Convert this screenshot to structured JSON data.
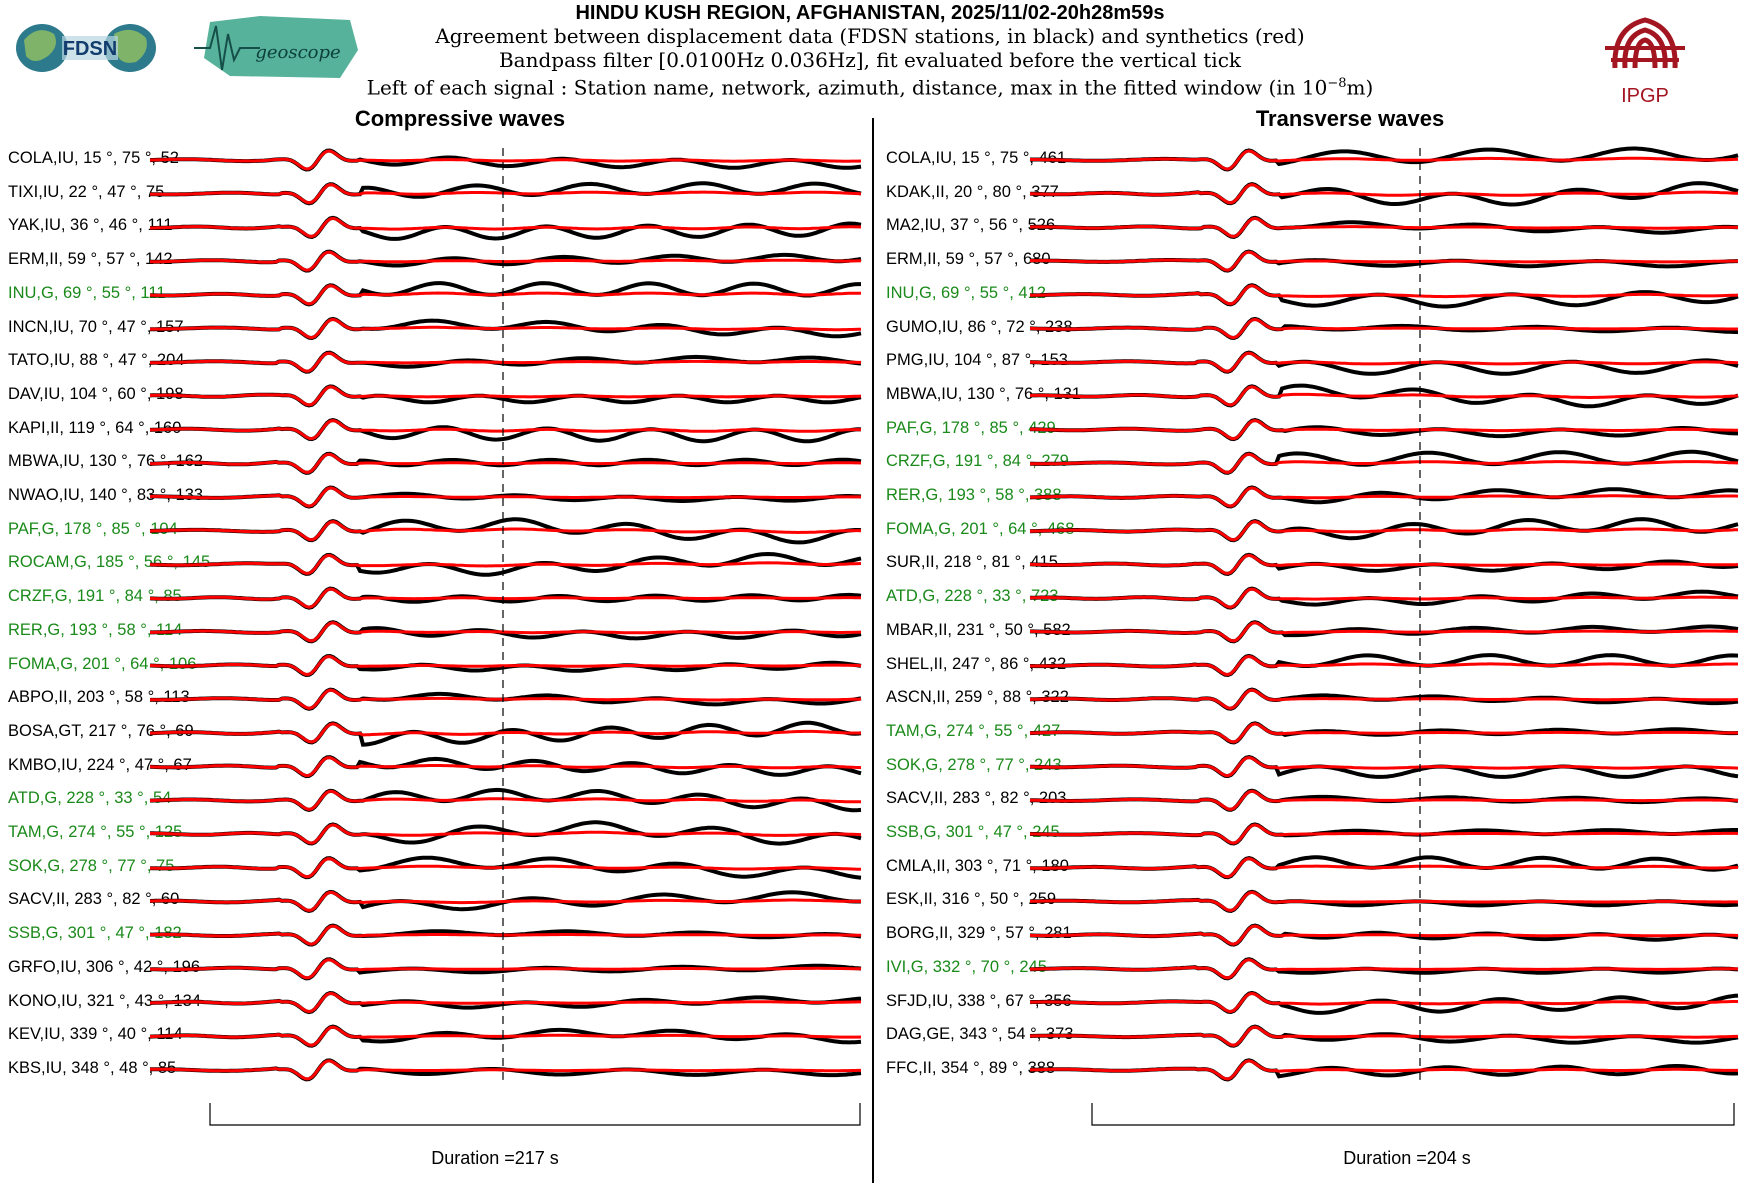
{
  "header": {
    "title": "HINDU KUSH REGION, AFGHANISTAN, 2025/11/02-20h28m59s",
    "line1": "Agreement between displacement data (FDSN stations, in black) and synthetics (red)",
    "line2": "Bandpass filter [0.0100Hz 0.036Hz], fit evaluated before the vertical tick",
    "line3_prefix": "Left of each signal : Station name, network, azimuth, distance, max in the fitted window (in 10",
    "line3_exp": "−8",
    "line3_suffix": "m)"
  },
  "logos": {
    "fdsn": "FDSN",
    "geoscope": "geoscope",
    "ipgp": "IPGP"
  },
  "colors": {
    "data": "#000000",
    "synthetic": "#ff0000",
    "geoscope_station": "#1a8a1a",
    "other_station": "#000000",
    "ipgp_red": "#a31621"
  },
  "chart_data": [
    {
      "type": "line",
      "title": "Compressive waves",
      "duration_label": "Duration =217 s",
      "duration_s": 217,
      "series_legend": [
        "data (black)",
        "synthetics (red)"
      ],
      "stations": [
        {
          "label": "COLA,IU, 15 °, 75 °, 52",
          "network": "IU",
          "azimuth": 15,
          "distance": 75,
          "max": 52,
          "geoscope": false
        },
        {
          "label": "TIXI,IU, 22 °, 47 °, 75",
          "network": "IU",
          "azimuth": 22,
          "distance": 47,
          "max": 75,
          "geoscope": false
        },
        {
          "label": "YAK,IU, 36 °, 46 °, 111",
          "network": "IU",
          "azimuth": 36,
          "distance": 46,
          "max": 111,
          "geoscope": false
        },
        {
          "label": "ERM,II, 59 °, 57 °, 142",
          "network": "II",
          "azimuth": 59,
          "distance": 57,
          "max": 142,
          "geoscope": false
        },
        {
          "label": "INU,G, 69 °, 55 °, 111",
          "network": "G",
          "azimuth": 69,
          "distance": 55,
          "max": 111,
          "geoscope": true
        },
        {
          "label": "INCN,IU, 70 °, 47 °, 157",
          "network": "IU",
          "azimuth": 70,
          "distance": 47,
          "max": 157,
          "geoscope": false
        },
        {
          "label": "TATO,IU, 88 °, 47 °, 204",
          "network": "IU",
          "azimuth": 88,
          "distance": 47,
          "max": 204,
          "geoscope": false
        },
        {
          "label": "DAV,IU, 104 °, 60 °, 198",
          "network": "IU",
          "azimuth": 104,
          "distance": 60,
          "max": 198,
          "geoscope": false
        },
        {
          "label": "KAPI,II, 119 °, 64 °, 160",
          "network": "II",
          "azimuth": 119,
          "distance": 64,
          "max": 160,
          "geoscope": false
        },
        {
          "label": "MBWA,IU, 130 °, 76 °, 162",
          "network": "IU",
          "azimuth": 130,
          "distance": 76,
          "max": 162,
          "geoscope": false
        },
        {
          "label": "NWAO,IU, 140 °, 83 °, 133",
          "network": "IU",
          "azimuth": 140,
          "distance": 83,
          "max": 133,
          "geoscope": false
        },
        {
          "label": "PAF,G, 178 °, 85 °, 104",
          "network": "G",
          "azimuth": 178,
          "distance": 85,
          "max": 104,
          "geoscope": true
        },
        {
          "label": "ROCAM,G, 185 °, 56 °, 145",
          "network": "G",
          "azimuth": 185,
          "distance": 56,
          "max": 145,
          "geoscope": true
        },
        {
          "label": "CRZF,G, 191 °, 84 °, 85",
          "network": "G",
          "azimuth": 191,
          "distance": 84,
          "max": 85,
          "geoscope": true
        },
        {
          "label": "RER,G, 193 °, 58 °, 114",
          "network": "G",
          "azimuth": 193,
          "distance": 58,
          "max": 114,
          "geoscope": true
        },
        {
          "label": "FOMA,G, 201 °, 64 °, 106",
          "network": "G",
          "azimuth": 201,
          "distance": 64,
          "max": 106,
          "geoscope": true
        },
        {
          "label": "ABPO,II, 203 °, 58 °, 113",
          "network": "II",
          "azimuth": 203,
          "distance": 58,
          "max": 113,
          "geoscope": false
        },
        {
          "label": "BOSA,GT, 217 °, 76 °, 69",
          "network": "GT",
          "azimuth": 217,
          "distance": 76,
          "max": 69,
          "geoscope": false
        },
        {
          "label": "KMBO,IU, 224 °, 47 °, 67",
          "network": "IU",
          "azimuth": 224,
          "distance": 47,
          "max": 67,
          "geoscope": false
        },
        {
          "label": "ATD,G, 228 °, 33 °, 54",
          "network": "G",
          "azimuth": 228,
          "distance": 33,
          "max": 54,
          "geoscope": true
        },
        {
          "label": "TAM,G, 274 °, 55 °, 125",
          "network": "G",
          "azimuth": 274,
          "distance": 55,
          "max": 125,
          "geoscope": true
        },
        {
          "label": "SOK,G, 278 °, 77 °, 75",
          "network": "G",
          "azimuth": 278,
          "distance": 77,
          "max": 75,
          "geoscope": true
        },
        {
          "label": "SACV,II, 283 °, 82 °, 60",
          "network": "II",
          "azimuth": 283,
          "distance": 82,
          "max": 60,
          "geoscope": false
        },
        {
          "label": "SSB,G, 301 °, 47 °, 182",
          "network": "G",
          "azimuth": 301,
          "distance": 47,
          "max": 182,
          "geoscope": true
        },
        {
          "label": "GRFO,IU, 306 °, 42 °, 196",
          "network": "IU",
          "azimuth": 306,
          "distance": 42,
          "max": 196,
          "geoscope": false
        },
        {
          "label": "KONO,IU, 321 °, 43 °, 134",
          "network": "IU",
          "azimuth": 321,
          "distance": 43,
          "max": 134,
          "geoscope": false
        },
        {
          "label": "KEV,IU, 339 °, 40 °, 114",
          "network": "IU",
          "azimuth": 339,
          "distance": 40,
          "max": 114,
          "geoscope": false
        },
        {
          "label": "KBS,IU, 348 °, 48 °, 85",
          "network": "IU",
          "azimuth": 348,
          "distance": 48,
          "max": 85,
          "geoscope": false
        }
      ]
    },
    {
      "type": "line",
      "title": "Transverse waves",
      "duration_label": "Duration =204 s",
      "duration_s": 204,
      "series_legend": [
        "data (black)",
        "synthetics (red)"
      ],
      "stations": [
        {
          "label": "COLA,IU, 15 °, 75 °, 461",
          "network": "IU",
          "azimuth": 15,
          "distance": 75,
          "max": 461,
          "geoscope": false
        },
        {
          "label": "KDAK,II, 20 °, 80 °, 377",
          "network": "II",
          "azimuth": 20,
          "distance": 80,
          "max": 377,
          "geoscope": false
        },
        {
          "label": "MA2,IU, 37 °, 56 °, 526",
          "network": "IU",
          "azimuth": 37,
          "distance": 56,
          "max": 526,
          "geoscope": false
        },
        {
          "label": "ERM,II, 59 °, 57 °, 680",
          "network": "II",
          "azimuth": 59,
          "distance": 57,
          "max": 680,
          "geoscope": false
        },
        {
          "label": "INU,G, 69 °, 55 °, 412",
          "network": "G",
          "azimuth": 69,
          "distance": 55,
          "max": 412,
          "geoscope": true
        },
        {
          "label": "GUMO,IU, 86 °, 72 °, 238",
          "network": "IU",
          "azimuth": 86,
          "distance": 72,
          "max": 238,
          "geoscope": false
        },
        {
          "label": "PMG,IU, 104 °, 87 °, 153",
          "network": "IU",
          "azimuth": 104,
          "distance": 87,
          "max": 153,
          "geoscope": false
        },
        {
          "label": "MBWA,IU, 130 °, 76 °, 131",
          "network": "IU",
          "azimuth": 130,
          "distance": 76,
          "max": 131,
          "geoscope": false
        },
        {
          "label": "PAF,G, 178 °, 85 °, 429",
          "network": "G",
          "azimuth": 178,
          "distance": 85,
          "max": 429,
          "geoscope": true
        },
        {
          "label": "CRZF,G, 191 °, 84 °, 279",
          "network": "G",
          "azimuth": 191,
          "distance": 84,
          "max": 279,
          "geoscope": true
        },
        {
          "label": "RER,G, 193 °, 58 °, 388",
          "network": "G",
          "azimuth": 193,
          "distance": 58,
          "max": 388,
          "geoscope": true
        },
        {
          "label": "FOMA,G, 201 °, 64 °, 468",
          "network": "G",
          "azimuth": 201,
          "distance": 64,
          "max": 468,
          "geoscope": true
        },
        {
          "label": "SUR,II, 218 °, 81 °, 415",
          "network": "II",
          "azimuth": 218,
          "distance": 81,
          "max": 415,
          "geoscope": false
        },
        {
          "label": "ATD,G, 228 °, 33 °, 723",
          "network": "G",
          "azimuth": 228,
          "distance": 33,
          "max": 723,
          "geoscope": true
        },
        {
          "label": "MBAR,II, 231 °, 50 °, 582",
          "network": "II",
          "azimuth": 231,
          "distance": 50,
          "max": 582,
          "geoscope": false
        },
        {
          "label": "SHEL,II, 247 °, 86 °, 432",
          "network": "II",
          "azimuth": 247,
          "distance": 86,
          "max": 432,
          "geoscope": false
        },
        {
          "label": "ASCN,II, 259 °, 88 °, 322",
          "network": "II",
          "azimuth": 259,
          "distance": 88,
          "max": 322,
          "geoscope": false
        },
        {
          "label": "TAM,G, 274 °, 55 °, 427",
          "network": "G",
          "azimuth": 274,
          "distance": 55,
          "max": 427,
          "geoscope": true
        },
        {
          "label": "SOK,G, 278 °, 77 °, 243",
          "network": "G",
          "azimuth": 278,
          "distance": 77,
          "max": 243,
          "geoscope": true
        },
        {
          "label": "SACV,II, 283 °, 82 °, 203",
          "network": "II",
          "azimuth": 283,
          "distance": 82,
          "max": 203,
          "geoscope": false
        },
        {
          "label": "SSB,G, 301 °, 47 °, 245",
          "network": "G",
          "azimuth": 301,
          "distance": 47,
          "max": 245,
          "geoscope": true
        },
        {
          "label": "CMLA,II, 303 °, 71 °, 180",
          "network": "II",
          "azimuth": 303,
          "distance": 71,
          "max": 180,
          "geoscope": false
        },
        {
          "label": "ESK,II, 316 °, 50 °, 259",
          "network": "II",
          "azimuth": 316,
          "distance": 50,
          "max": 259,
          "geoscope": false
        },
        {
          "label": "BORG,II, 329 °, 57 °, 281",
          "network": "II",
          "azimuth": 329,
          "distance": 57,
          "max": 281,
          "geoscope": false
        },
        {
          "label": "IVI,G, 332 °, 70 °, 245",
          "network": "G",
          "azimuth": 332,
          "distance": 70,
          "max": 245,
          "geoscope": true
        },
        {
          "label": "SFJD,IU, 338 °, 67 °, 356",
          "network": "IU",
          "azimuth": 338,
          "distance": 67,
          "max": 356,
          "geoscope": false
        },
        {
          "label": "DAG,GE, 343 °, 54 °, 373",
          "network": "GE",
          "azimuth": 343,
          "distance": 54,
          "max": 373,
          "geoscope": false
        },
        {
          "label": "FFC,II, 354 °, 89 °, 388",
          "network": "II",
          "azimuth": 354,
          "distance": 89,
          "max": 388,
          "geoscope": false
        }
      ]
    }
  ]
}
